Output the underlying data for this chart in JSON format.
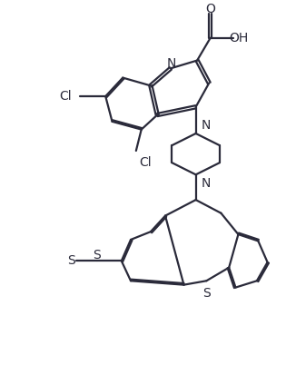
{
  "background_color": "#ffffff",
  "line_color": "#2a2a3a",
  "line_width": 1.6,
  "font_size": 10,
  "figsize": [
    3.26,
    4.13
  ],
  "dpi": 100,
  "xlim": [
    -0.5,
    10.5
  ],
  "ylim": [
    -0.5,
    13.5
  ]
}
